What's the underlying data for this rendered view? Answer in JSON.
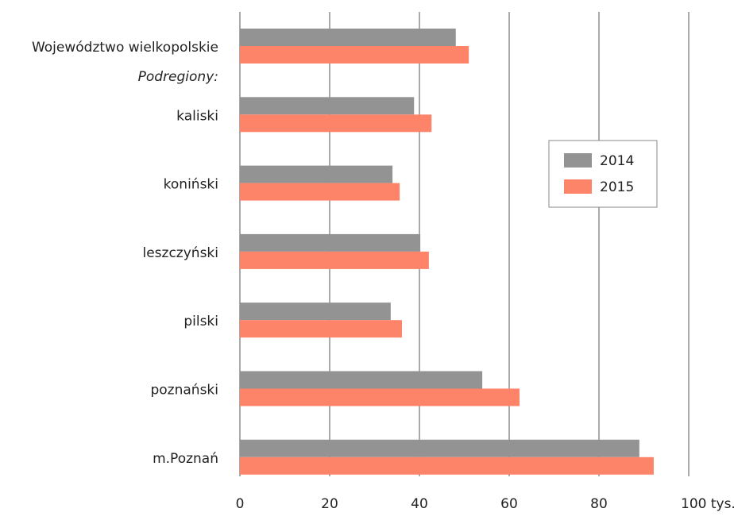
{
  "chart_data": {
    "type": "hbar",
    "categories": [
      "Województwo wielkopolskie",
      "kaliski",
      "koniński",
      "leszczyński",
      "pilski",
      "poznański",
      "m.Poznań"
    ],
    "annotation": "Podregiony:",
    "series": [
      {
        "name": "2014",
        "color": "#939393",
        "values": [
          48.1,
          38.8,
          34.0,
          40.2,
          33.6,
          54.0,
          89.0
        ]
      },
      {
        "name": "2015",
        "color": "#fd8469",
        "values": [
          51.0,
          42.7,
          35.6,
          42.1,
          36.1,
          62.3,
          92.2
        ]
      }
    ],
    "xlim": [
      0,
      100
    ],
    "xticks": [
      0,
      20,
      40,
      60,
      80,
      {
        "value": 100,
        "label": "100 tys."
      }
    ],
    "grid": true,
    "legend": "right"
  }
}
